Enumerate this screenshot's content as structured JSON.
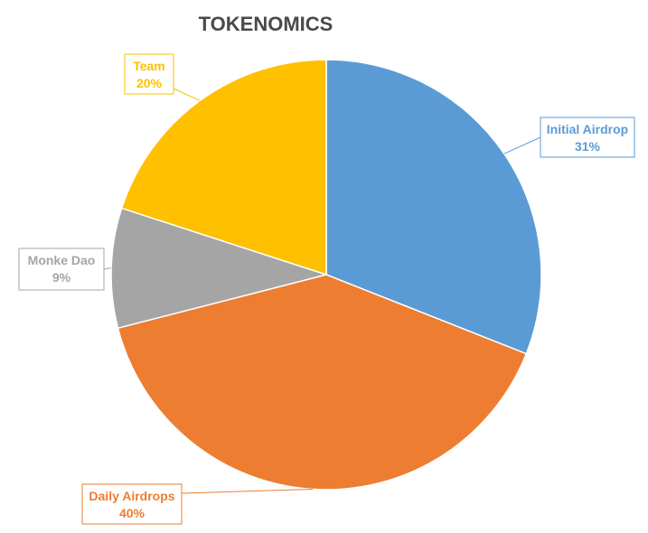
{
  "chart_data": {
    "type": "pie",
    "title": "TOKENOMICS",
    "slices": [
      {
        "label": "Initial Airdrop",
        "value": 31,
        "display": "31%",
        "color": "#5B9BD5"
      },
      {
        "label": "Daily Airdrops",
        "value": 40,
        "display": "40%",
        "color": "#ED7D31"
      },
      {
        "label": "Monke Dao",
        "value": 9,
        "display": "9%",
        "color": "#A5A5A5"
      },
      {
        "label": "Team",
        "value": 20,
        "display": "20%",
        "color": "#FFC000"
      }
    ],
    "start_angle_deg": 0,
    "direction": "clockwise",
    "legend": "none",
    "data_labels": "callouts"
  }
}
